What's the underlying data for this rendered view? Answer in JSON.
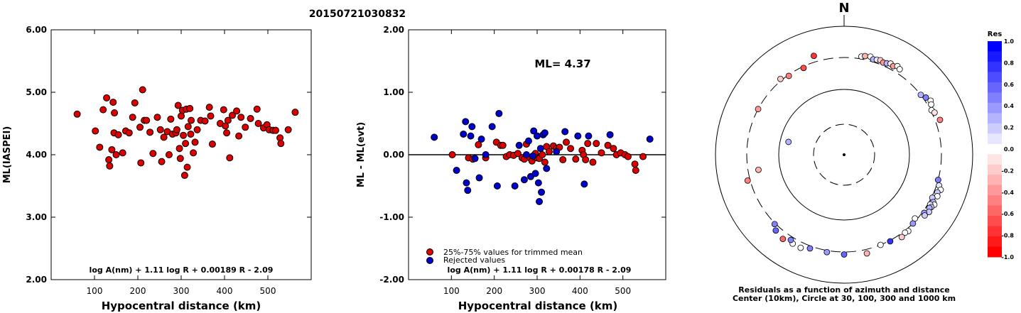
{
  "title": "20150721030832",
  "chart_data": [
    {
      "type": "scatter",
      "ylabel": "ML(IASPEI)",
      "xlabel": "Hypocentral distance (km)",
      "xlim": [
        0,
        600
      ],
      "ylim": [
        2.0,
        6.0
      ],
      "x_ticks": [
        "100",
        "200",
        "300",
        "400",
        "500"
      ],
      "y_ticks": [
        "2.00",
        "3.00",
        "4.00",
        "5.00",
        "6.00"
      ],
      "formula": "log A(nm) + 1.11 log R + 0.00189 R - 2.09",
      "series": [
        {
          "color": "#dd0000",
          "points": [
            [
              60,
              4.65
            ],
            [
              102,
              4.38
            ],
            [
              112,
              4.12
            ],
            [
              120,
              4.72
            ],
            [
              128,
              4.91
            ],
            [
              133,
              3.92
            ],
            [
              135,
              3.82
            ],
            [
              140,
              4.08
            ],
            [
              143,
              4.84
            ],
            [
              145,
              4.35
            ],
            [
              146,
              4.67
            ],
            [
              150,
              4.0
            ],
            [
              155,
              4.32
            ],
            [
              165,
              4.03
            ],
            [
              172,
              4.38
            ],
            [
              180,
              4.35
            ],
            [
              188,
              4.6
            ],
            [
              193,
              4.83
            ],
            [
              205,
              4.44
            ],
            [
              207,
              3.87
            ],
            [
              211,
              5.04
            ],
            [
              215,
              4.55
            ],
            [
              220,
              4.55
            ],
            [
              228,
              4.36
            ],
            [
              235,
              4.02
            ],
            [
              245,
              4.6
            ],
            [
              252,
              4.4
            ],
            [
              255,
              3.89
            ],
            [
              260,
              4.28
            ],
            [
              268,
              4.37
            ],
            [
              272,
              4.0
            ],
            [
              276,
              4.57
            ],
            [
              280,
              4.33
            ],
            [
              288,
              4.35
            ],
            [
              290,
              4.4
            ],
            [
              293,
              4.79
            ],
            [
              296,
              4.1
            ],
            [
              298,
              3.94
            ],
            [
              300,
              4.62
            ],
            [
              303,
              4.71
            ],
            [
              305,
              4.31
            ],
            [
              308,
              3.67
            ],
            [
              310,
              4.18
            ],
            [
              312,
              4.73
            ],
            [
              314,
              3.8
            ],
            [
              316,
              4.45
            ],
            [
              320,
              4.74
            ],
            [
              322,
              4.33
            ],
            [
              323,
              4.55
            ],
            [
              328,
              4.03
            ],
            [
              332,
              4.2
            ],
            [
              337,
              4.4
            ],
            [
              345,
              4.55
            ],
            [
              355,
              4.54
            ],
            [
              365,
              4.76
            ],
            [
              368,
              4.62
            ],
            [
              372,
              4.17
            ],
            [
              390,
              4.5
            ],
            [
              398,
              4.72
            ],
            [
              402,
              4.46
            ],
            [
              405,
              4.35
            ],
            [
              408,
              4.55
            ],
            [
              412,
              3.95
            ],
            [
              418,
              4.63
            ],
            [
              428,
              4.7
            ],
            [
              433,
              4.3
            ],
            [
              438,
              4.6
            ],
            [
              448,
              4.44
            ],
            [
              460,
              4.58
            ],
            [
              475,
              4.73
            ],
            [
              478,
              4.5
            ],
            [
              490,
              4.43
            ],
            [
              498,
              4.48
            ],
            [
              503,
              4.4
            ],
            [
              512,
              4.39
            ],
            [
              518,
              4.39
            ],
            [
              528,
              4.27
            ],
            [
              530,
              4.18
            ],
            [
              547,
              4.4
            ],
            [
              563,
              4.68
            ]
          ]
        }
      ]
    },
    {
      "type": "scatter",
      "ylabel": "ML - ML(evt)",
      "xlabel": "Hypocentral distance (km)",
      "xlim": [
        0,
        600
      ],
      "ylim": [
        -2.0,
        2.0
      ],
      "x_ticks": [
        "100",
        "200",
        "300",
        "400",
        "500"
      ],
      "y_ticks": [
        "-2.00",
        "-1.00",
        "0.00",
        "1.00",
        "2.00"
      ],
      "annotation": "ML= 4.37",
      "formula": "log A(nm) + 1.11 log R + 0.00178 R - 2.09",
      "legend": [
        "25%-75% values for trimmed mean",
        "Rejected values"
      ],
      "series": [
        {
          "name": "25%-75% values for trimmed mean",
          "color": "#dd0000",
          "points": [
            [
              102,
              0.0
            ],
            [
              140,
              -0.05
            ],
            [
              150,
              -0.07
            ],
            [
              163,
              0.16
            ],
            [
              180,
              -0.05
            ],
            [
              205,
              0.2
            ],
            [
              215,
              0.15
            ],
            [
              220,
              0.15
            ],
            [
              228,
              -0.03
            ],
            [
              236,
              0.0
            ],
            [
              245,
              -0.01
            ],
            [
              255,
              0.02
            ],
            [
              265,
              -0.05
            ],
            [
              270,
              -0.07
            ],
            [
              275,
              0.17
            ],
            [
              283,
              -0.05
            ],
            [
              288,
              -0.1
            ],
            [
              292,
              -0.03
            ],
            [
              296,
              0.02
            ],
            [
              300,
              -0.05
            ],
            [
              305,
              -0.06
            ],
            [
              312,
              0.0
            ],
            [
              318,
              -0.12
            ],
            [
              322,
              0.13
            ],
            [
              328,
              0.05
            ],
            [
              338,
              0.14
            ],
            [
              345,
              0.1
            ],
            [
              352,
              0.12
            ],
            [
              360,
              -0.08
            ],
            [
              368,
              0.2
            ],
            [
              378,
              0.1
            ],
            [
              390,
              -0.07
            ],
            [
              405,
              0.07
            ],
            [
              408,
              0.0
            ],
            [
              413,
              -0.08
            ],
            [
              418,
              0.18
            ],
            [
              430,
              -0.12
            ],
            [
              438,
              0.18
            ],
            [
              450,
              0.03
            ],
            [
              465,
              0.15
            ],
            [
              478,
              0.1
            ],
            [
              485,
              0.0
            ],
            [
              495,
              0.03
            ],
            [
              505,
              0.0
            ],
            [
              512,
              -0.03
            ],
            [
              528,
              -0.15
            ],
            [
              530,
              -0.25
            ],
            [
              547,
              -0.03
            ]
          ]
        },
        {
          "name": "Rejected values",
          "color": "#0000cc",
          "points": [
            [
              60,
              0.28
            ],
            [
              112,
              -0.25
            ],
            [
              128,
              0.33
            ],
            [
              133,
              0.53
            ],
            [
              135,
              -0.45
            ],
            [
              138,
              -0.57
            ],
            [
              145,
              0.3
            ],
            [
              148,
              0.45
            ],
            [
              155,
              -0.06
            ],
            [
              165,
              -0.37
            ],
            [
              170,
              0.25
            ],
            [
              180,
              0.0
            ],
            [
              195,
              0.45
            ],
            [
              207,
              -0.5
            ],
            [
              211,
              0.66
            ],
            [
              248,
              -0.5
            ],
            [
              258,
              0.15
            ],
            [
              270,
              -0.4
            ],
            [
              275,
              0.0
            ],
            [
              280,
              0.22
            ],
            [
              285,
              -0.35
            ],
            [
              290,
              -0.02
            ],
            [
              292,
              0.38
            ],
            [
              296,
              -0.3
            ],
            [
              300,
              0.3
            ],
            [
              303,
              -0.45
            ],
            [
              305,
              -0.75
            ],
            [
              308,
              0.1
            ],
            [
              310,
              -0.6
            ],
            [
              314,
              0.32
            ],
            [
              318,
              0.35
            ],
            [
              322,
              -0.22
            ],
            [
              345,
              0.05
            ],
            [
              365,
              0.37
            ],
            [
              395,
              0.3
            ],
            [
              410,
              -0.47
            ],
            [
              420,
              0.3
            ],
            [
              470,
              0.32
            ],
            [
              563,
              0.25
            ]
          ]
        }
      ]
    },
    {
      "type": "scatter",
      "subtype": "polar",
      "north_label": "N",
      "caption_line1": "Residuals as a function of azimuth and distance",
      "caption_line2": "Center (10km), Circle at 30, 100, 300 and 1000 km",
      "colorbar_title": "Res",
      "colorbar_ticks": [
        "1.0",
        "0.8",
        "0.6",
        "0.4",
        "0.2",
        "0.0",
        "-0.2",
        "-0.4",
        "-0.6",
        "-0.8",
        "-1.0"
      ],
      "points": [
        {
          "az": 10,
          "dist_km": 330,
          "res": 0.0
        },
        {
          "az": 12,
          "dist_km": 345,
          "res": -0.3
        },
        {
          "az": 15,
          "dist_km": 355,
          "res": 0.0
        },
        {
          "az": 17,
          "dist_km": 330,
          "res": 0.3
        },
        {
          "az": 19,
          "dist_km": 340,
          "res": 0.1
        },
        {
          "az": 21,
          "dist_km": 350,
          "res": -0.2
        },
        {
          "az": 23,
          "dist_km": 335,
          "res": -0.4
        },
        {
          "az": 25,
          "dist_km": 345,
          "res": 0.3
        },
        {
          "az": 27,
          "dist_km": 365,
          "res": -0.1
        },
        {
          "az": 29,
          "dist_km": 350,
          "res": -0.4
        },
        {
          "az": 31,
          "dist_km": 380,
          "res": 0.0
        },
        {
          "az": 33,
          "dist_km": 360,
          "res": 0.0
        },
        {
          "az": 52,
          "dist_km": 300,
          "res": 0.3
        },
        {
          "az": 55,
          "dist_km": 330,
          "res": 0.5
        },
        {
          "az": 58,
          "dist_km": 360,
          "res": 0.0
        },
        {
          "az": 60,
          "dist_km": 340,
          "res": 0.0
        },
        {
          "az": 63,
          "dist_km": 310,
          "res": 0.0
        },
        {
          "az": 65,
          "dist_km": 330,
          "res": -0.1
        },
        {
          "az": 70,
          "dist_km": 360,
          "res": -0.5
        },
        {
          "az": 105,
          "dist_km": 300,
          "res": 0.5
        },
        {
          "az": 108,
          "dist_km": 330,
          "res": 0.1
        },
        {
          "az": 110,
          "dist_km": 370,
          "res": 0.0
        },
        {
          "az": 112,
          "dist_km": 340,
          "res": 0.2
        },
        {
          "az": 114,
          "dist_km": 360,
          "res": 0.0
        },
        {
          "az": 116,
          "dist_km": 310,
          "res": 0.2
        },
        {
          "az": 118,
          "dist_km": 345,
          "res": 0.3
        },
        {
          "az": 119,
          "dist_km": 375,
          "res": 0.0
        },
        {
          "az": 120,
          "dist_km": 325,
          "res": 0.1
        },
        {
          "az": 121,
          "dist_km": 355,
          "res": 0.2
        },
        {
          "az": 122,
          "dist_km": 340,
          "res": 0.3
        },
        {
          "az": 124,
          "dist_km": 365,
          "res": 0.2
        },
        {
          "az": 126,
          "dist_km": 320,
          "res": 0.4
        },
        {
          "az": 127,
          "dist_km": 345,
          "res": 0.2
        },
        {
          "az": 132,
          "dist_km": 280,
          "res": 0.0
        },
        {
          "az": 135,
          "dist_km": 300,
          "res": 0.4
        },
        {
          "az": 140,
          "dist_km": 330,
          "res": 0.0
        },
        {
          "az": 142,
          "dist_km": 320,
          "res": 0.0
        },
        {
          "az": 145,
          "dist_km": 340,
          "res": -0.2
        },
        {
          "az": 152,
          "dist_km": 310,
          "res": 0.8
        },
        {
          "az": 158,
          "dist_km": 300,
          "res": 0.0
        },
        {
          "az": 167,
          "dist_km": 350,
          "res": -0.3
        },
        {
          "az": 180,
          "dist_km": 330,
          "res": 0.6
        },
        {
          "az": 190,
          "dist_km": 320,
          "res": 0.4
        },
        {
          "az": 200,
          "dist_km": 330,
          "res": 0.5
        },
        {
          "az": 205,
          "dist_km": 370,
          "res": 0.0
        },
        {
          "az": 210,
          "dist_km": 370,
          "res": 0.0
        },
        {
          "az": 212,
          "dist_km": 340,
          "res": 0.5
        },
        {
          "az": 216,
          "dist_km": 390,
          "res": -0.6
        },
        {
          "az": 222,
          "dist_km": 360,
          "res": 0.6
        },
        {
          "az": 225,
          "dist_km": 310,
          "res": 0.5
        },
        {
          "az": 260,
          "dist_km": 210,
          "res": -0.3
        },
        {
          "az": 255,
          "dist_km": 330,
          "res": -0.5
        },
        {
          "az": 283,
          "dist_km": 75,
          "res": 0.3
        },
        {
          "az": 298,
          "dist_km": 300,
          "res": -0.4
        },
        {
          "az": 320,
          "dist_km": 320,
          "res": -0.2
        },
        {
          "az": 325,
          "dist_km": 290,
          "res": -0.5
        },
        {
          "az": 335,
          "dist_km": 285,
          "res": -0.7
        },
        {
          "az": 343,
          "dist_km": 380,
          "res": -0.8
        }
      ]
    }
  ]
}
